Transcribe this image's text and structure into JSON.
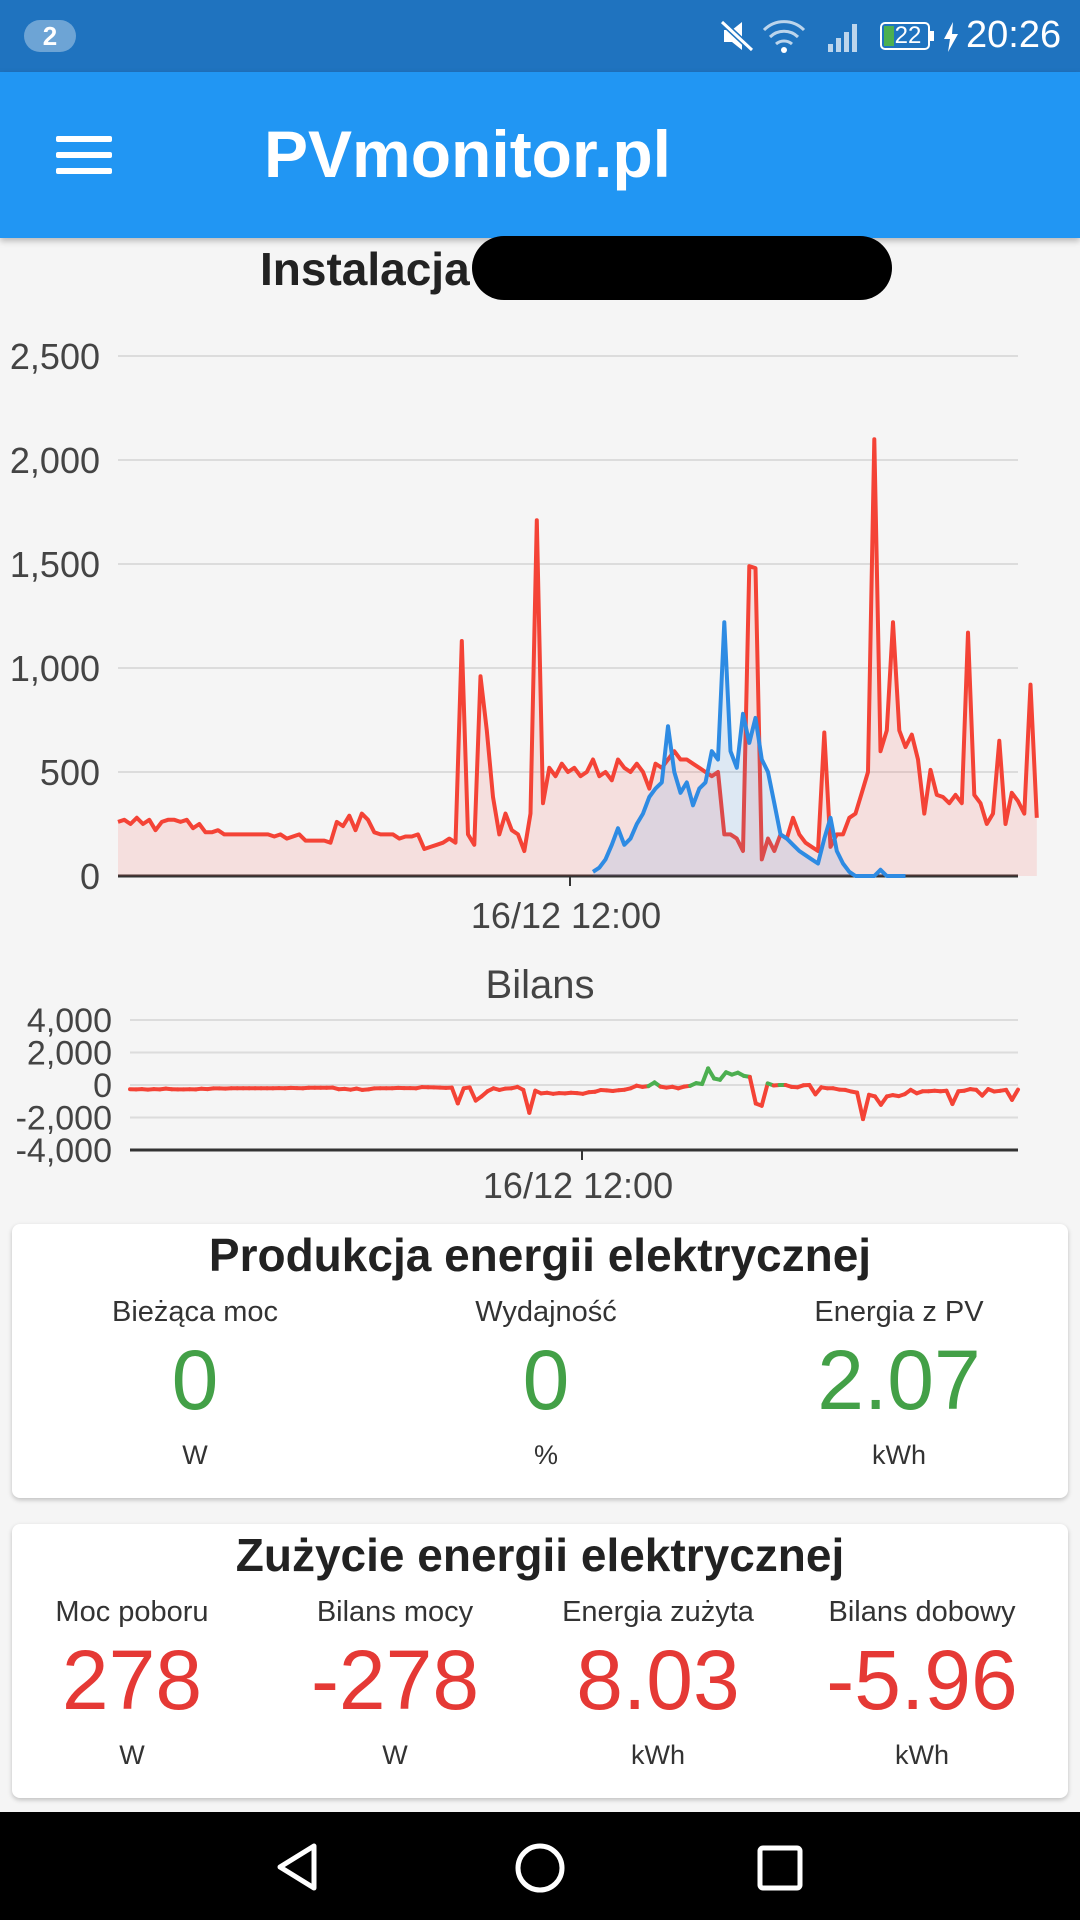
{
  "status_bar": {
    "notification_count": "2",
    "battery": "22",
    "time": "20:26",
    "icons": [
      "mute-icon",
      "wifi-icon",
      "signal-icon",
      "battery-icon",
      "charging-icon"
    ]
  },
  "app_bar": {
    "title": "PVmonitor.pl",
    "menu_icon": "hamburger-menu-icon"
  },
  "installation": {
    "label": "Instalacja"
  },
  "colors": {
    "appbar": "#2196f3",
    "statusbar": "#1f73bf",
    "consumption": "#f44336",
    "production": "#2e8be3",
    "positive_balance": "#4caf50",
    "value_green": "#43a047",
    "value_red": "#e53935"
  },
  "chart_data": [
    {
      "type": "area",
      "title": "",
      "xlabel": "",
      "ylabel": "",
      "x_tick_labels": [
        "16/12 12:00"
      ],
      "y_ticks": [
        "0",
        "500",
        "1,000",
        "1,500",
        "2,000",
        "2,500"
      ],
      "ylim": [
        0,
        2500
      ],
      "grid": true,
      "x_points": 145,
      "series": [
        {
          "color": "#f44336",
          "values": [
            260,
            270,
            250,
            280,
            250,
            270,
            220,
            260,
            270,
            270,
            260,
            270,
            230,
            250,
            210,
            210,
            220,
            200,
            200,
            200,
            200,
            200,
            200,
            200,
            200,
            190,
            200,
            180,
            190,
            200,
            170,
            170,
            170,
            170,
            160,
            260,
            240,
            290,
            220,
            300,
            270,
            210,
            200,
            200,
            200,
            180,
            190,
            190,
            200,
            130,
            140,
            150,
            160,
            180,
            160,
            1130,
            200,
            150,
            960,
            700,
            380,
            200,
            300,
            220,
            200,
            120,
            300,
            1710,
            350,
            520,
            480,
            540,
            500,
            520,
            480,
            500,
            560,
            480,
            500,
            460,
            560,
            520,
            500,
            540,
            500,
            420,
            540,
            520,
            560,
            600,
            560,
            560,
            540,
            520,
            500,
            480,
            500,
            200,
            200,
            180,
            120,
            1490,
            1480,
            80,
            180,
            120,
            200,
            180,
            280,
            200,
            160,
            140,
            120,
            690,
            140,
            200,
            200,
            280,
            300,
            400,
            500,
            2100,
            600,
            700,
            1220,
            700,
            620,
            680,
            560,
            300,
            510,
            390,
            380,
            350,
            390,
            350,
            1170,
            390,
            350,
            250,
            300,
            650,
            250,
            400,
            360,
            300,
            920,
            280
          ]
        },
        {
          "color": "#2e8be3",
          "values": [
            0,
            0,
            0,
            0,
            0,
            0,
            0,
            0,
            0,
            0,
            0,
            0,
            0,
            0,
            0,
            0,
            0,
            0,
            0,
            0,
            0,
            0,
            0,
            0,
            0,
            0,
            0,
            0,
            0,
            0,
            0,
            0,
            0,
            0,
            0,
            0,
            0,
            0,
            0,
            0,
            0,
            0,
            0,
            0,
            0,
            0,
            0,
            0,
            0,
            0,
            0,
            0,
            0,
            0,
            0,
            0,
            0,
            0,
            0,
            0,
            0,
            0,
            0,
            0,
            0,
            0,
            0,
            0,
            0,
            0,
            0,
            0,
            0,
            0,
            0,
            0,
            20,
            40,
            80,
            150,
            230,
            150,
            180,
            250,
            300,
            380,
            420,
            450,
            720,
            500,
            400,
            450,
            340,
            420,
            450,
            600,
            560,
            1220,
            600,
            520,
            780,
            640,
            760,
            560,
            500,
            350,
            200,
            180,
            150,
            120,
            100,
            80,
            60,
            180,
            280,
            120,
            60,
            20,
            0,
            0,
            0,
            0,
            30,
            0,
            0,
            0,
            0
          ]
        }
      ]
    },
    {
      "type": "line",
      "title": "Bilans",
      "xlabel": "",
      "ylabel": "",
      "x_tick_labels": [
        "16/12 12:00"
      ],
      "y_ticks": [
        "4,000",
        "2,000",
        "0",
        "-2,000",
        "-4,000"
      ],
      "ylim": [
        -4000,
        4000
      ],
      "grid": true,
      "positive_color": "#4caf50",
      "negative_color": "#f44336",
      "values": [
        -260,
        -270,
        -250,
        -280,
        -250,
        -270,
        -220,
        -260,
        -270,
        -270,
        -260,
        -270,
        -230,
        -250,
        -210,
        -210,
        -220,
        -200,
        -200,
        -200,
        -200,
        -200,
        -200,
        -200,
        -200,
        -190,
        -200,
        -180,
        -190,
        -200,
        -170,
        -170,
        -170,
        -170,
        -160,
        -260,
        -240,
        -290,
        -220,
        -300,
        -270,
        -210,
        -200,
        -200,
        -200,
        -180,
        -190,
        -190,
        -200,
        -130,
        -140,
        -150,
        -160,
        -180,
        -160,
        -1130,
        -200,
        -150,
        -960,
        -700,
        -380,
        -200,
        -300,
        -220,
        -200,
        -120,
        -300,
        -1710,
        -350,
        -520,
        -480,
        -540,
        -500,
        -520,
        -480,
        -500,
        -540,
        -440,
        -420,
        -310,
        -330,
        -370,
        -320,
        -290,
        -200,
        -40,
        -120,
        -70,
        160,
        -100,
        -160,
        -110,
        -200,
        -100,
        -50,
        120,
        60,
        1020,
        400,
        320,
        780,
        640,
        760,
        560,
        500,
        -1140,
        -1280,
        100,
        -30,
        0,
        0,
        -120,
        -140,
        -20,
        0,
        -570,
        -140,
        -200,
        -200,
        -280,
        -300,
        -400,
        -470,
        -2100,
        -600,
        -700,
        -1220,
        -700,
        -620,
        -680,
        -560,
        -300,
        -510,
        -390,
        -380,
        -350,
        -390,
        -350,
        -1170,
        -390,
        -350,
        -250,
        -300,
        -650,
        -250,
        -400,
        -360,
        -300,
        -920,
        -280
      ]
    }
  ],
  "production_card": {
    "title": "Produkcja energii elektrycznej",
    "metrics": [
      {
        "label": "Bieżąca moc",
        "value": "0",
        "unit": "W"
      },
      {
        "label": "Wydajność",
        "value": "0",
        "unit": "%"
      },
      {
        "label": "Energia z PV",
        "value": "2.07",
        "unit": "kWh"
      }
    ]
  },
  "consumption_card": {
    "title": "Zużycie energii elektrycznej",
    "metrics": [
      {
        "label": "Moc poboru",
        "value": "278",
        "unit": "W"
      },
      {
        "label": "Bilans mocy",
        "value": "-278",
        "unit": "W"
      },
      {
        "label": "Energia zużyta",
        "value": "8.03",
        "unit": "kWh"
      },
      {
        "label": "Bilans dobowy",
        "value": "-5.96",
        "unit": "kWh"
      }
    ]
  },
  "nav_bar": {
    "icons": [
      "back-icon",
      "home-icon",
      "recents-icon"
    ]
  }
}
